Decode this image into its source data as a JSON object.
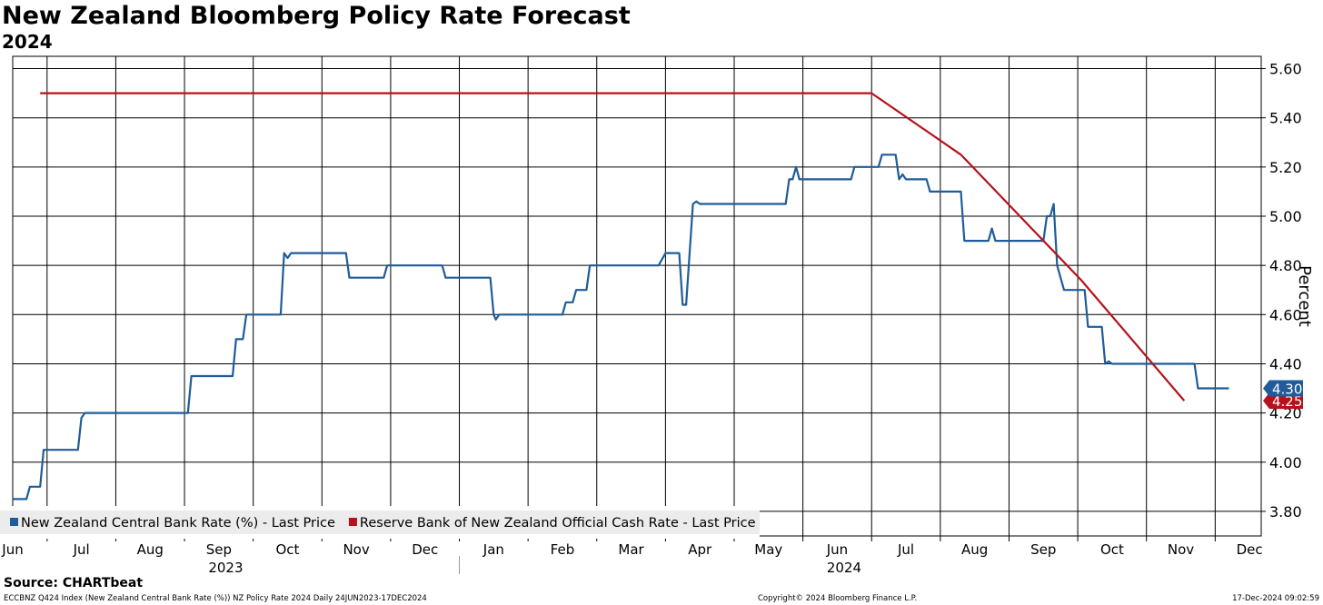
{
  "header": {
    "title": "New Zealand Bloomberg Policy Rate Forecast",
    "subtitle": "2024"
  },
  "source": "Source: CHARTbeat",
  "footer": {
    "left": "ECCBNZ Q424 Index (New Zealand Central Bank Rate (%)) NZ Policy Rate 2024  Daily 24JUN2023-17DEC2024",
    "center": "Copyright© 2024 Bloomberg Finance L.P.",
    "right": "17-Dec-2024 09:02:59"
  },
  "chart_data": {
    "type": "line",
    "title": "New Zealand Bloomberg Policy Rate Forecast",
    "subtitle": "2024",
    "ylabel": "Percent",
    "ylim": [
      3.7,
      5.65
    ],
    "yticks": [
      "3.80",
      "4.00",
      "4.20",
      "4.40",
      "4.60",
      "4.80",
      "5.00",
      "5.20",
      "5.40",
      "5.60"
    ],
    "xlim": [
      0,
      18.17
    ],
    "months": [
      "Jun",
      "Jul",
      "Aug",
      "Sep",
      "Oct",
      "Nov",
      "Dec",
      "Jan",
      "Feb",
      "Mar",
      "Apr",
      "May",
      "Jun",
      "Jul",
      "Aug",
      "Sep",
      "Oct",
      "Nov",
      "Dec"
    ],
    "years": [
      {
        "label": "2023",
        "x": 3.1
      },
      {
        "label": "2024",
        "x": 12.1
      }
    ],
    "legend_position": "bottom-left",
    "grid": true,
    "series": [
      {
        "name": "New Zealand Central Bank Rate (%) - Last Price",
        "color": "#1f5c99",
        "last_label": "4.30",
        "points": [
          [
            0,
            3.85
          ],
          [
            0.2,
            3.85
          ],
          [
            0.25,
            3.9
          ],
          [
            0.4,
            3.9
          ],
          [
            0.45,
            4.05
          ],
          [
            0.95,
            4.05
          ],
          [
            1.0,
            4.18
          ],
          [
            1.05,
            4.2
          ],
          [
            2.55,
            4.2
          ],
          [
            2.6,
            4.35
          ],
          [
            3.2,
            4.35
          ],
          [
            3.25,
            4.5
          ],
          [
            3.35,
            4.5
          ],
          [
            3.4,
            4.6
          ],
          [
            3.9,
            4.6
          ],
          [
            3.95,
            4.85
          ],
          [
            4.0,
            4.83
          ],
          [
            4.05,
            4.85
          ],
          [
            4.85,
            4.85
          ],
          [
            4.9,
            4.75
          ],
          [
            5.4,
            4.75
          ],
          [
            5.45,
            4.8
          ],
          [
            6.25,
            4.8
          ],
          [
            6.3,
            4.75
          ],
          [
            6.95,
            4.75
          ],
          [
            7.0,
            4.6
          ],
          [
            7.03,
            4.58
          ],
          [
            7.08,
            4.6
          ],
          [
            8.0,
            4.6
          ],
          [
            8.05,
            4.65
          ],
          [
            8.15,
            4.65
          ],
          [
            8.2,
            4.7
          ],
          [
            8.35,
            4.7
          ],
          [
            8.4,
            4.8
          ],
          [
            9.4,
            4.8
          ],
          [
            9.5,
            4.85
          ],
          [
            9.7,
            4.85
          ],
          [
            9.75,
            4.64
          ],
          [
            9.8,
            4.64
          ],
          [
            9.9,
            5.05
          ],
          [
            9.95,
            5.06
          ],
          [
            10.0,
            5.05
          ],
          [
            11.25,
            5.05
          ],
          [
            11.3,
            5.15
          ],
          [
            11.35,
            5.15
          ],
          [
            11.4,
            5.2
          ],
          [
            11.45,
            5.15
          ],
          [
            12.2,
            5.15
          ],
          [
            12.25,
            5.2
          ],
          [
            12.6,
            5.2
          ],
          [
            12.65,
            5.25
          ],
          [
            12.85,
            5.25
          ],
          [
            12.9,
            5.15
          ],
          [
            12.95,
            5.17
          ],
          [
            13.0,
            5.15
          ],
          [
            13.3,
            5.15
          ],
          [
            13.35,
            5.1
          ],
          [
            13.8,
            5.1
          ],
          [
            13.85,
            4.9
          ],
          [
            14.2,
            4.9
          ],
          [
            14.25,
            4.95
          ],
          [
            14.3,
            4.9
          ],
          [
            15.0,
            4.9
          ],
          [
            15.05,
            5.0
          ],
          [
            15.1,
            5.0
          ],
          [
            15.15,
            5.05
          ],
          [
            15.2,
            4.8
          ],
          [
            15.3,
            4.7
          ],
          [
            15.6,
            4.7
          ],
          [
            15.65,
            4.55
          ],
          [
            15.85,
            4.55
          ],
          [
            15.9,
            4.4
          ],
          [
            15.95,
            4.41
          ],
          [
            16.0,
            4.4
          ],
          [
            17.2,
            4.4
          ],
          [
            17.25,
            4.3
          ],
          [
            17.7,
            4.3
          ]
        ]
      },
      {
        "name": "Reserve Bank of New Zealand Official Cash Rate - Last Price",
        "color": "#b5121b",
        "last_label": "4.25",
        "points": [
          [
            0.4,
            5.5
          ],
          [
            12.5,
            5.5
          ],
          [
            13.8,
            5.25
          ],
          [
            15.55,
            4.74
          ],
          [
            17.05,
            4.25
          ]
        ]
      }
    ]
  }
}
